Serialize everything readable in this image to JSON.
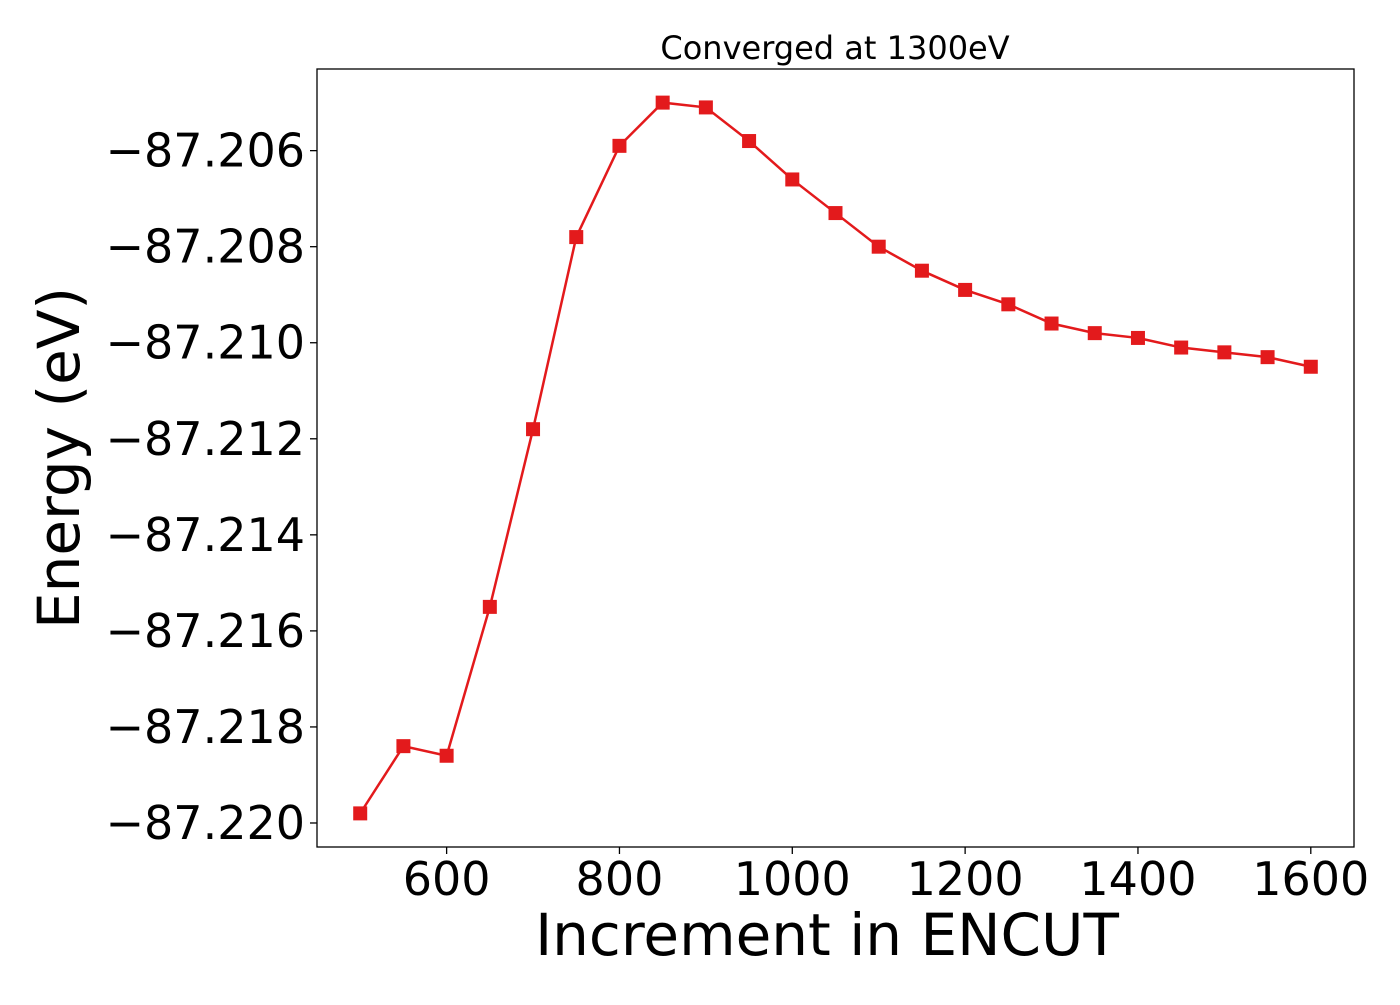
{
  "chart_data": {
    "type": "line",
    "title": "Converged at 1300eV",
    "xlabel": "Increment in ENCUT",
    "ylabel": "Energy (eV)",
    "xlim": [
      450,
      1650
    ],
    "ylim": [
      -87.2205,
      -87.2043
    ],
    "xticks": [
      600,
      800,
      1000,
      1200,
      1400,
      1600
    ],
    "xtick_labels": [
      "600",
      "800",
      "1000",
      "1200",
      "1400",
      "1600"
    ],
    "yticks": [
      -87.206,
      -87.208,
      -87.21,
      -87.212,
      -87.214,
      -87.216,
      -87.218,
      -87.22
    ],
    "ytick_labels": [
      "−87.206",
      "−87.208",
      "−87.210",
      "−87.212",
      "−87.214",
      "−87.216",
      "−87.218",
      "−87.220"
    ],
    "grid": false,
    "series": [
      {
        "color": "#e31a1c",
        "marker": "square",
        "x": [
          500,
          550,
          600,
          650,
          700,
          750,
          800,
          850,
          900,
          950,
          1000,
          1050,
          1100,
          1150,
          1200,
          1250,
          1300,
          1350,
          1400,
          1450,
          1500,
          1550,
          1600
        ],
        "y": [
          -87.2198,
          -87.2184,
          -87.2186,
          -87.2155,
          -87.2118,
          -87.2078,
          -87.2059,
          -87.205,
          -87.2051,
          -87.2058,
          -87.2066,
          -87.2073,
          -87.208,
          -87.2085,
          -87.2089,
          -87.2092,
          -87.2096,
          -87.2098,
          -87.2099,
          -87.2101,
          -87.2102,
          -87.2103,
          -87.2105
        ]
      }
    ]
  }
}
